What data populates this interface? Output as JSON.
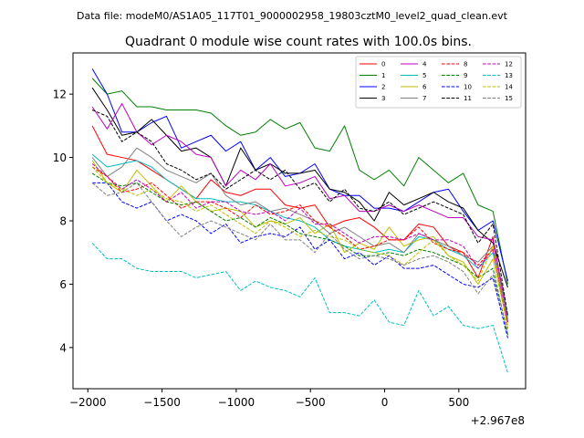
{
  "chart_data": {
    "type": "line",
    "suptitle": "Data file: modeM0/AS1A05_117T01_9000002958_19803cztM0_level2_quad_clean.evt",
    "title": "Quadrant 0 module wise count rates with 100.0s bins.",
    "offset_label": "+2.967e8",
    "xlabel": "",
    "ylabel": "",
    "xlim": [
      -2100,
      950
    ],
    "ylim": [
      2.7,
      13.3
    ],
    "xticks": [
      -2000,
      -1500,
      -1000,
      -500,
      0,
      500
    ],
    "xtick_labels": [
      "−2000",
      "−1500",
      "−1000",
      "−500",
      "0",
      "500"
    ],
    "yticks": [
      4,
      6,
      8,
      10,
      12
    ],
    "ytick_labels": [
      "4",
      "6",
      "8",
      "10",
      "12"
    ],
    "x": [
      -1970,
      -1870,
      -1770,
      -1670,
      -1570,
      -1470,
      -1370,
      -1270,
      -1170,
      -1070,
      -970,
      -870,
      -770,
      -670,
      -570,
      -470,
      -370,
      -270,
      -170,
      -70,
      30,
      130,
      230,
      330,
      430,
      530,
      630,
      730,
      830
    ],
    "legend_position": "upper-right",
    "series": [
      {
        "name": "0",
        "color": "#ff0000",
        "dash": "solid",
        "values": [
          11.0,
          10.1,
          10.0,
          9.9,
          9.6,
          9.3,
          9.0,
          8.7,
          9.3,
          8.9,
          8.8,
          9.0,
          9.0,
          8.5,
          8.4,
          8.5,
          7.8,
          8.0,
          8.1,
          7.8,
          7.4,
          7.4,
          7.9,
          7.8,
          7.2,
          7.0,
          6.2,
          7.5,
          4.8
        ]
      },
      {
        "name": "1",
        "color": "#008000",
        "dash": "solid",
        "values": [
          12.5,
          12.0,
          12.1,
          11.6,
          11.6,
          11.5,
          11.5,
          11.5,
          11.4,
          11.0,
          10.7,
          10.8,
          11.2,
          10.9,
          11.1,
          10.3,
          10.2,
          11.0,
          9.6,
          9.3,
          9.6,
          9.1,
          10.0,
          9.6,
          9.2,
          9.5,
          8.5,
          8.3,
          6.0
        ]
      },
      {
        "name": "2",
        "color": "#0000ff",
        "dash": "solid",
        "values": [
          12.8,
          12.0,
          10.8,
          10.8,
          11.1,
          11.3,
          10.3,
          10.5,
          10.7,
          10.2,
          10.5,
          9.6,
          10.0,
          9.4,
          9.5,
          9.8,
          9.0,
          8.8,
          8.8,
          8.4,
          8.4,
          8.3,
          8.6,
          8.9,
          9.0,
          8.3,
          7.7,
          8.0,
          6.1
        ]
      },
      {
        "name": "3",
        "color": "#000000",
        "dash": "solid",
        "values": [
          12.2,
          11.5,
          10.7,
          10.8,
          11.2,
          10.7,
          10.2,
          10.3,
          10.0,
          9.1,
          10.3,
          9.6,
          9.8,
          9.5,
          9.5,
          9.6,
          9.0,
          8.9,
          8.6,
          8.0,
          8.9,
          8.5,
          8.7,
          8.9,
          8.6,
          8.4,
          7.7,
          7.3,
          5.9
        ]
      },
      {
        "name": "4",
        "color": "#bf00bf",
        "dash": "solid",
        "values": [
          11.6,
          10.9,
          11.7,
          10.8,
          10.4,
          10.7,
          10.5,
          10.1,
          10.0,
          9.1,
          9.6,
          9.3,
          9.8,
          9.1,
          9.2,
          9.4,
          8.7,
          8.8,
          8.3,
          8.3,
          8.5,
          8.3,
          8.5,
          8.3,
          8.1,
          8.1,
          7.5,
          7.4,
          5.0
        ]
      },
      {
        "name": "5",
        "color": "#00bfbf",
        "dash": "solid",
        "values": [
          10.1,
          9.7,
          9.8,
          9.9,
          9.7,
          9.3,
          9.0,
          8.7,
          8.7,
          8.6,
          8.6,
          8.5,
          8.3,
          8.1,
          8.0,
          7.8,
          7.4,
          7.2,
          7.1,
          7.0,
          7.1,
          7.0,
          7.5,
          7.4,
          7.1,
          6.9,
          6.5,
          7.0,
          5.0
        ]
      },
      {
        "name": "6",
        "color": "#bfbf00",
        "dash": "solid",
        "values": [
          9.9,
          9.2,
          8.9,
          9.6,
          9.1,
          8.6,
          9.1,
          8.6,
          8.3,
          8.4,
          8.3,
          7.8,
          8.0,
          7.9,
          8.1,
          7.6,
          7.9,
          7.0,
          7.3,
          7.1,
          7.8,
          7.2,
          7.4,
          7.5,
          6.9,
          6.7,
          6.0,
          6.8,
          4.7
        ]
      },
      {
        "name": "7",
        "color": "#808080",
        "dash": "solid",
        "values": [
          10.0,
          9.4,
          9.7,
          10.3,
          10.0,
          9.6,
          9.4,
          9.2,
          9.5,
          8.8,
          8.5,
          8.6,
          8.3,
          8.4,
          8.2,
          8.0,
          7.6,
          7.8,
          7.5,
          7.2,
          7.3,
          7.0,
          7.6,
          7.4,
          7.2,
          6.9,
          6.7,
          7.2,
          4.9
        ]
      },
      {
        "name": "8",
        "color": "#ff0000",
        "dash": "dashed",
        "values": [
          9.7,
          9.4,
          8.9,
          9.0,
          9.2,
          8.8,
          8.4,
          8.6,
          8.6,
          8.4,
          8.1,
          8.5,
          8.2,
          8.3,
          8.5,
          8.0,
          7.8,
          7.5,
          7.1,
          7.2,
          7.4,
          7.4,
          7.8,
          7.3,
          7.1,
          7.0,
          6.6,
          7.1,
          4.6
        ]
      },
      {
        "name": "9",
        "color": "#008000",
        "dash": "dashed",
        "values": [
          9.5,
          9.2,
          9.1,
          9.2,
          8.9,
          8.6,
          8.5,
          8.6,
          8.3,
          8.0,
          8.1,
          7.8,
          8.1,
          7.9,
          7.6,
          7.5,
          7.4,
          7.2,
          6.9,
          6.9,
          7.0,
          6.9,
          7.1,
          7.0,
          6.8,
          6.6,
          6.2,
          6.5,
          4.4
        ]
      },
      {
        "name": "10",
        "color": "#0000ff",
        "dash": "dashed",
        "values": [
          9.2,
          9.2,
          8.6,
          8.4,
          8.6,
          8.0,
          8.2,
          8.0,
          7.6,
          7.9,
          7.3,
          7.5,
          7.6,
          7.5,
          7.8,
          7.1,
          7.4,
          6.8,
          7.0,
          6.6,
          6.9,
          6.5,
          6.5,
          6.6,
          6.3,
          6.0,
          5.9,
          6.2,
          4.3
        ]
      },
      {
        "name": "11",
        "color": "#000000",
        "dash": "dashed",
        "values": [
          11.5,
          11.3,
          10.5,
          10.8,
          10.5,
          9.8,
          9.6,
          9.3,
          9.5,
          9.0,
          9.3,
          9.6,
          9.3,
          9.6,
          9.0,
          9.2,
          8.6,
          9.0,
          8.4,
          8.3,
          8.6,
          8.2,
          8.4,
          8.6,
          8.4,
          8.2,
          7.3,
          7.9,
          5.0
        ]
      },
      {
        "name": "12",
        "color": "#bf00bf",
        "dash": "dashed",
        "values": [
          9.8,
          9.4,
          9.0,
          9.3,
          9.0,
          8.6,
          8.9,
          8.4,
          8.6,
          8.6,
          8.3,
          8.2,
          8.3,
          8.0,
          8.4,
          7.9,
          7.9,
          7.6,
          7.3,
          7.5,
          7.5,
          7.4,
          7.6,
          7.4,
          7.4,
          7.2,
          6.5,
          7.1,
          4.8
        ]
      },
      {
        "name": "13",
        "color": "#00bfbf",
        "dash": "dashed",
        "values": [
          7.3,
          6.8,
          6.8,
          6.5,
          6.4,
          6.4,
          6.4,
          6.2,
          6.3,
          6.4,
          5.8,
          6.1,
          5.9,
          5.8,
          5.6,
          6.2,
          5.1,
          5.1,
          5.0,
          5.5,
          4.8,
          4.7,
          5.8,
          5.0,
          5.3,
          4.7,
          4.6,
          4.7,
          3.2
        ]
      },
      {
        "name": "14",
        "color": "#bfbf00",
        "dash": "dashed",
        "values": [
          9.7,
          9.2,
          9.0,
          8.8,
          9.0,
          8.7,
          8.6,
          8.3,
          8.5,
          8.2,
          7.9,
          7.6,
          8.0,
          7.8,
          7.5,
          7.7,
          7.5,
          7.4,
          7.1,
          7.0,
          6.9,
          6.6,
          7.0,
          7.4,
          6.9,
          6.6,
          6.1,
          7.2,
          4.6
        ]
      },
      {
        "name": "15",
        "color": "#808080",
        "dash": "dashed",
        "values": [
          9.2,
          8.8,
          8.9,
          9.2,
          8.6,
          8.0,
          7.5,
          7.8,
          8.0,
          7.8,
          7.6,
          7.4,
          7.9,
          7.4,
          7.4,
          7.0,
          7.6,
          7.1,
          6.8,
          6.9,
          6.8,
          6.6,
          6.8,
          6.9,
          6.7,
          6.4,
          5.7,
          6.3,
          4.5
        ]
      }
    ]
  }
}
